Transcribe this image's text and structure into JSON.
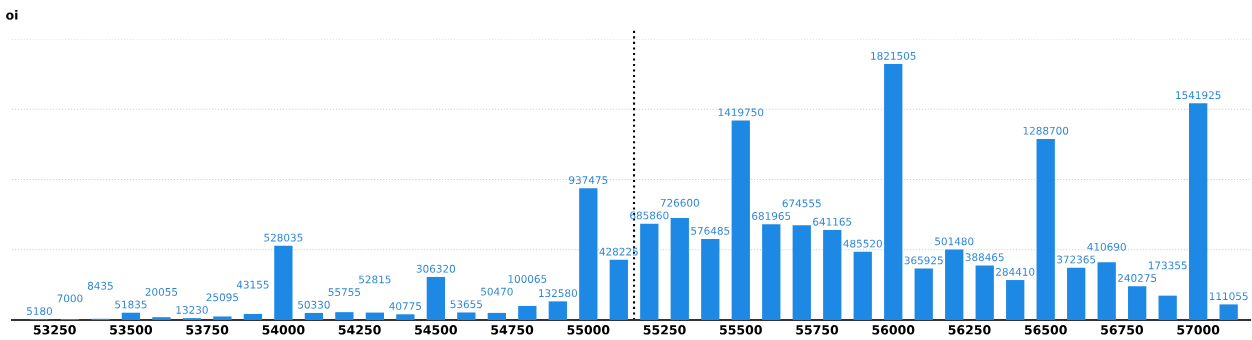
{
  "chart_data": {
    "type": "bar",
    "ylabel": "oi",
    "x": [
      53200,
      53300,
      53400,
      53500,
      53600,
      53700,
      53800,
      53900,
      54000,
      54100,
      54200,
      54300,
      54400,
      54500,
      54600,
      54700,
      54800,
      54900,
      55000,
      55100,
      55200,
      55300,
      55400,
      55500,
      55600,
      55700,
      55800,
      55900,
      56000,
      56100,
      56200,
      56300,
      56400,
      56500,
      56600,
      56700,
      56800,
      56900,
      57000,
      57100
    ],
    "values": [
      5180,
      7000,
      8435,
      51835,
      20055,
      13230,
      25095,
      43155,
      528035,
      50330,
      55755,
      52815,
      40775,
      306320,
      53655,
      50470,
      100065,
      132580,
      937475,
      428225,
      685860,
      726600,
      576485,
      1419750,
      681965,
      674555,
      641165,
      485520,
      1821505,
      365925,
      501480,
      388465,
      284410,
      1288700,
      372365,
      410690,
      240275,
      173355,
      1541925,
      111055
    ],
    "color": "#1e88e5",
    "data_labels": true,
    "xlim": [
      53110,
      57170
    ],
    "xticks": [
      53250,
      53500,
      53750,
      54000,
      54250,
      54500,
      54750,
      55000,
      55250,
      55500,
      55750,
      56000,
      56250,
      56500,
      56750,
      57000
    ],
    "ylim": [
      0,
      2000000
    ],
    "yticks": [
      {
        "value": 0,
        "label": null
      },
      {
        "value": 500000,
        "label": null
      },
      {
        "value": 1000000,
        "label": null
      },
      {
        "value": 1500000,
        "label": null
      },
      {
        "value": 2000000,
        "label": null
      }
    ],
    "tick_labels": "x",
    "grid": "y",
    "legend": false,
    "ref_lines": [
      {
        "axis": "x",
        "value": 55150,
        "label": null,
        "color": "#000000",
        "line_style": "dotted"
      }
    ]
  }
}
